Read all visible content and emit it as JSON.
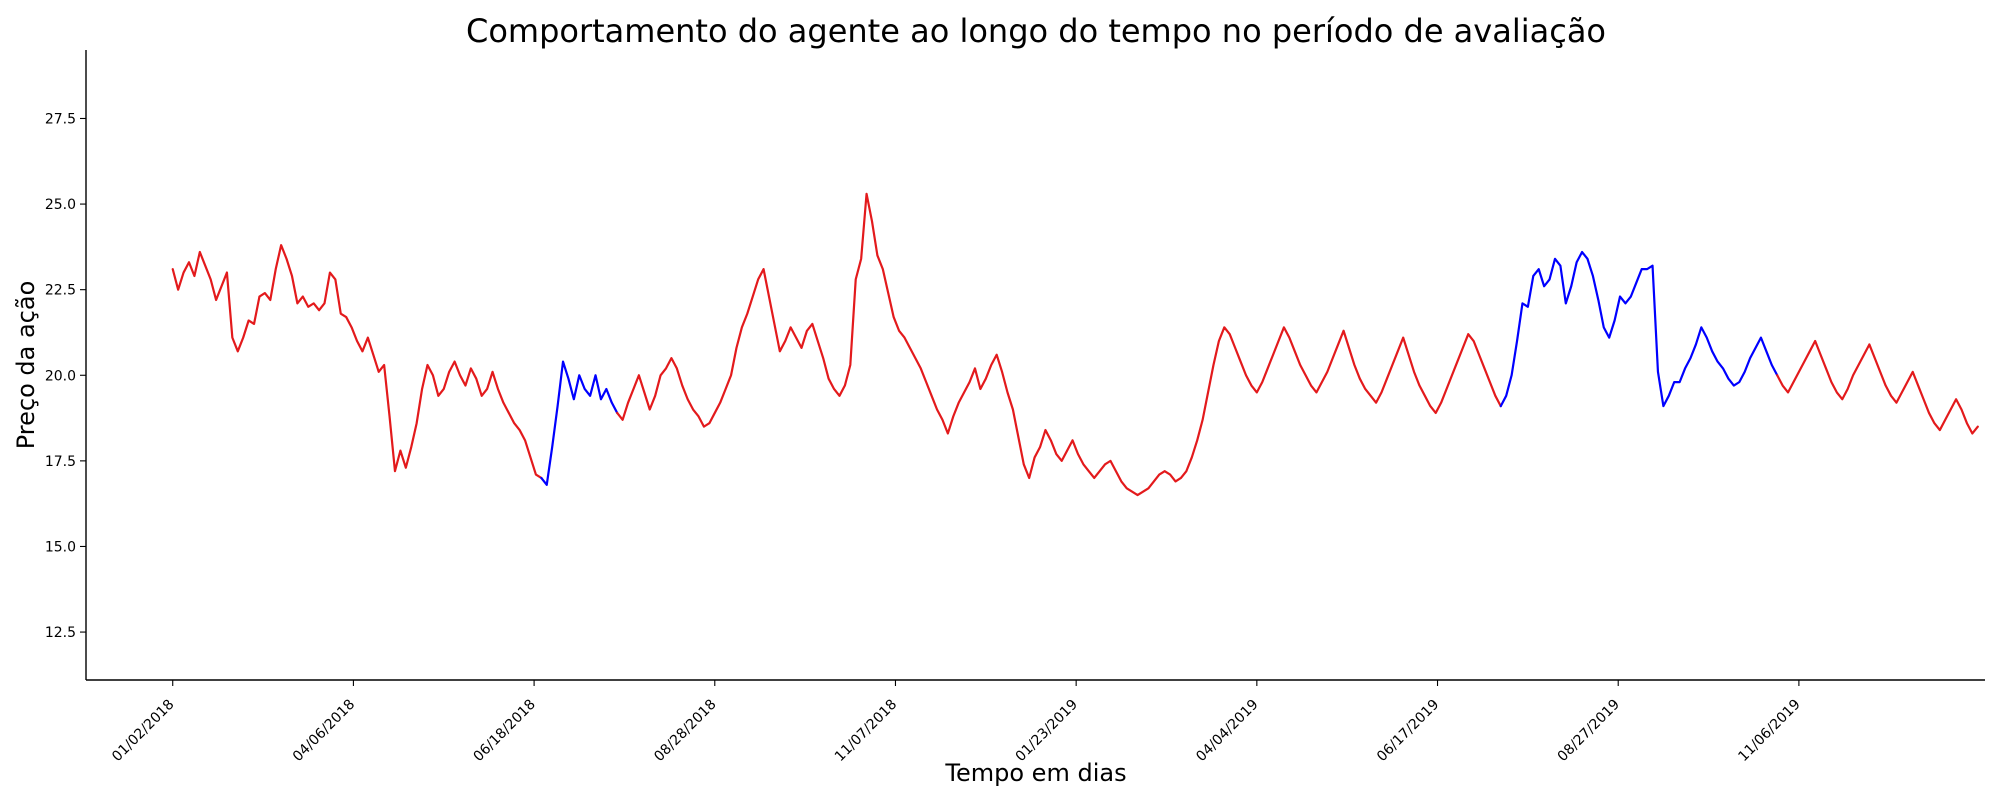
{
  "chart_data": {
    "type": "line",
    "title": "Comportamento do agente ao longo do tempo no período de avaliação",
    "xlabel": "Tempo em dias",
    "ylabel": "Preço da ação",
    "x_tick_labels": [
      "01/02/2018",
      "04/06/2018",
      "06/18/2018",
      "08/28/2018",
      "11/07/2018",
      "01/23/2019",
      "04/04/2019",
      "06/17/2019",
      "08/27/2019",
      "11/06/2019"
    ],
    "y_ticks": [
      12.5,
      15.0,
      17.5,
      20.0,
      22.5,
      25.0,
      27.5
    ],
    "xlim": [
      -48,
      1003
    ],
    "ylim": [
      11.1,
      29.5
    ],
    "series_colors": {
      "red": "#e31a1c",
      "blue": "#0000ff"
    },
    "segments": [
      {
        "color": "red",
        "x": [
          0,
          3,
          6,
          9,
          12,
          15,
          18,
          21,
          24,
          27,
          30,
          33,
          36,
          39,
          42,
          45,
          48,
          51,
          54,
          57,
          60,
          63,
          66,
          69,
          72,
          75,
          78,
          81,
          84,
          87,
          90,
          93,
          96,
          99,
          102,
          105,
          108,
          111,
          114,
          117,
          120,
          123,
          126,
          129,
          132,
          135,
          138,
          141,
          144,
          147,
          150,
          153,
          156,
          159,
          162,
          165,
          168,
          171,
          174,
          177,
          180,
          183,
          186,
          189,
          192,
          195,
          198,
          201,
          204
        ],
        "y": [
          23.1,
          22.5,
          23.0,
          23.3,
          22.9,
          23.6,
          23.2,
          22.8,
          22.2,
          22.6,
          23.0,
          21.1,
          20.7,
          21.1,
          21.6,
          21.5,
          22.3,
          22.4,
          22.2,
          23.1,
          23.8,
          23.4,
          22.9,
          22.1,
          22.3,
          22.0,
          22.1,
          21.9,
          22.1,
          23.0,
          22.8,
          21.8,
          21.7,
          21.4,
          21.0,
          20.7,
          21.1,
          20.6,
          20.1,
          20.3,
          18.8,
          17.2,
          17.8,
          17.3,
          17.9,
          18.6,
          19.6,
          20.3,
          20.0,
          19.4,
          19.6,
          20.1,
          20.4,
          20.0,
          19.7,
          20.2,
          19.9,
          19.4,
          19.6,
          20.1,
          19.6,
          19.2,
          18.9,
          18.6,
          18.4,
          18.1,
          17.6,
          17.1,
          17.0
        ]
      },
      {
        "color": "blue",
        "x": [
          204,
          207,
          210,
          213,
          216,
          219,
          222,
          225,
          228,
          231,
          234,
          237,
          240,
          243,
          246
        ],
        "y": [
          17.0,
          16.8,
          17.9,
          19.1,
          20.4,
          19.9,
          19.3,
          20.0,
          19.6,
          19.4,
          20.0,
          19.3,
          19.6,
          19.2,
          18.9
        ]
      },
      {
        "color": "red",
        "x": [
          246,
          249,
          252,
          255,
          258,
          261,
          264,
          267,
          270,
          273,
          276,
          279,
          282,
          285,
          288,
          291,
          294,
          297,
          300,
          303,
          306,
          309,
          312,
          315,
          318,
          321,
          324,
          327,
          330,
          333,
          336,
          339,
          342,
          345,
          348,
          351,
          354,
          357,
          360,
          363,
          366,
          369,
          372,
          375,
          378,
          381,
          384,
          387,
          390,
          393,
          396,
          399,
          402,
          405,
          408,
          411,
          414,
          417,
          420,
          423,
          426,
          429,
          432,
          435,
          438,
          441,
          444,
          447,
          450,
          453,
          456,
          459,
          462,
          465,
          468,
          471,
          474,
          477,
          480,
          483,
          486,
          489,
          492,
          495,
          498,
          501,
          504,
          507,
          510,
          513,
          516,
          519,
          522,
          525,
          528,
          531,
          534,
          537,
          540,
          543,
          546,
          549,
          552,
          555,
          558,
          561,
          564,
          567,
          570,
          573,
          576,
          579,
          582,
          585,
          588,
          591,
          594,
          597,
          600,
          603,
          606,
          609,
          612,
          615,
          618,
          621,
          624,
          627,
          630,
          633,
          636,
          639,
          642,
          645,
          648,
          651,
          654,
          657,
          660,
          663,
          666,
          669,
          672,
          675,
          678,
          681,
          684,
          687,
          690,
          693,
          696,
          699,
          702,
          705,
          708,
          711,
          714,
          717,
          720,
          723,
          726,
          729,
          732,
          735
        ],
        "y": [
          18.9,
          18.7,
          19.2,
          19.6,
          20.0,
          19.5,
          19.0,
          19.4,
          20.0,
          20.2,
          20.5,
          20.2,
          19.7,
          19.3,
          19.0,
          18.8,
          18.5,
          18.6,
          18.9,
          19.2,
          19.6,
          20.0,
          20.8,
          21.4,
          21.8,
          22.3,
          22.8,
          23.1,
          22.3,
          21.5,
          20.7,
          21.0,
          21.4,
          21.1,
          20.8,
          21.3,
          21.5,
          21.0,
          20.5,
          19.9,
          19.6,
          19.4,
          19.7,
          20.3,
          22.8,
          23.4,
          25.3,
          24.5,
          23.5,
          23.1,
          22.4,
          21.7,
          21.3,
          21.1,
          20.8,
          20.5,
          20.2,
          19.8,
          19.4,
          19.0,
          18.7,
          18.3,
          18.8,
          19.2,
          19.5,
          19.8,
          20.2,
          19.6,
          19.9,
          20.3,
          20.6,
          20.1,
          19.5,
          19.0,
          18.2,
          17.4,
          17.0,
          17.6,
          17.9,
          18.4,
          18.1,
          17.7,
          17.5,
          17.8,
          18.1,
          17.7,
          17.4,
          17.2,
          17.0,
          17.2,
          17.4,
          17.5,
          17.2,
          16.9,
          16.7,
          16.6,
          16.5,
          16.6,
          16.7,
          16.9,
          17.1,
          17.2,
          17.1,
          16.9,
          17.0,
          17.2,
          17.6,
          18.1,
          18.7,
          19.5,
          20.3,
          21.0,
          21.4,
          21.2,
          20.8,
          20.4,
          20.0,
          19.7,
          19.5,
          19.8,
          20.2,
          20.6,
          21.0,
          21.4,
          21.1,
          20.7,
          20.3,
          20.0,
          19.7,
          19.5,
          19.8,
          20.1,
          20.5,
          20.9,
          21.3,
          20.8,
          20.3,
          19.9,
          19.6,
          19.4,
          19.2,
          19.5,
          19.9,
          20.3,
          20.7,
          21.1,
          20.6,
          20.1,
          19.7,
          19.4,
          19.1,
          18.9,
          19.2,
          19.6,
          20.0,
          20.4,
          20.8,
          21.2,
          21.0,
          20.6,
          20.2,
          19.8,
          19.4,
          19.1
        ]
      },
      {
        "color": "blue",
        "x": [
          735,
          738,
          741,
          744,
          747,
          750,
          753,
          756,
          759,
          762,
          765,
          768,
          771,
          774,
          777,
          780,
          783,
          786,
          789,
          792,
          795,
          798,
          801,
          804,
          807,
          810,
          813,
          816,
          819,
          822,
          825,
          828,
          831,
          834,
          837,
          840,
          843,
          846,
          849,
          852,
          855,
          858,
          861,
          864,
          867,
          870,
          873,
          876,
          879,
          882,
          885,
          888
        ],
        "y": [
          19.1,
          19.4,
          20.0,
          21.0,
          22.1,
          22.0,
          22.9,
          23.1,
          22.6,
          22.8,
          23.4,
          23.2,
          22.1,
          22.6,
          23.3,
          23.6,
          23.4,
          22.9,
          22.2,
          21.4,
          21.1,
          21.6,
          22.3,
          22.1,
          22.3,
          22.7,
          23.1,
          23.1,
          23.2,
          20.1,
          19.1,
          19.4,
          19.8,
          19.8,
          20.2,
          20.5,
          20.9,
          21.4,
          21.1,
          20.7,
          20.4,
          20.2,
          19.9,
          19.7,
          19.8,
          20.1,
          20.5,
          20.8,
          21.1,
          20.7,
          20.3,
          20.0
        ]
      },
      {
        "color": "red",
        "x": [
          888,
          891,
          894,
          897,
          900,
          903,
          906,
          909,
          912,
          915,
          918,
          921,
          924,
          927,
          930,
          933,
          936,
          939,
          942,
          945,
          948,
          951,
          954,
          957,
          960,
          963,
          966,
          969,
          972,
          975,
          978,
          981,
          984,
          987,
          990,
          993,
          996,
          999
        ],
        "y": [
          20.0,
          19.7,
          19.5,
          19.8,
          20.1,
          20.4,
          20.7,
          21.0,
          20.6,
          20.2,
          19.8,
          19.5,
          19.3,
          19.6,
          20.0,
          20.3,
          20.6,
          20.9,
          20.5,
          20.1,
          19.7,
          19.4,
          19.2,
          19.5,
          19.8,
          20.1,
          19.7,
          19.3,
          18.9,
          18.6,
          18.4,
          18.7,
          19.0,
          19.3,
          19.0,
          18.6,
          18.3,
          18.5
        ]
      }
    ]
  }
}
